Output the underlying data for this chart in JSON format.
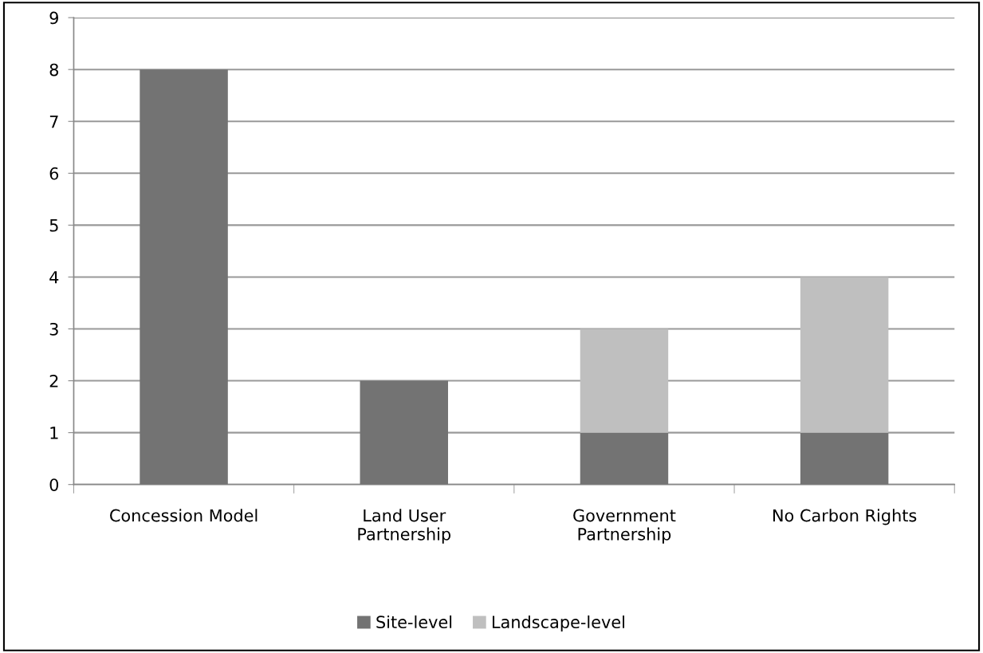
{
  "chart_data": {
    "type": "bar",
    "stacked": true,
    "categories": [
      "Concession Model",
      "Land User\nPartnership",
      "Government\nPartnership",
      "No Carbon Rights"
    ],
    "series": [
      {
        "name": "Site-level",
        "color": "#737373",
        "values": [
          8,
          2,
          1,
          1
        ]
      },
      {
        "name": "Landscape-level",
        "color": "#bfbfbf",
        "values": [
          0,
          0,
          2,
          3
        ]
      }
    ],
    "ylim": [
      0,
      9
    ],
    "yticks": [
      0,
      1,
      2,
      3,
      4,
      5,
      6,
      7,
      8,
      9
    ],
    "grid": "y",
    "legend": "bottom"
  }
}
